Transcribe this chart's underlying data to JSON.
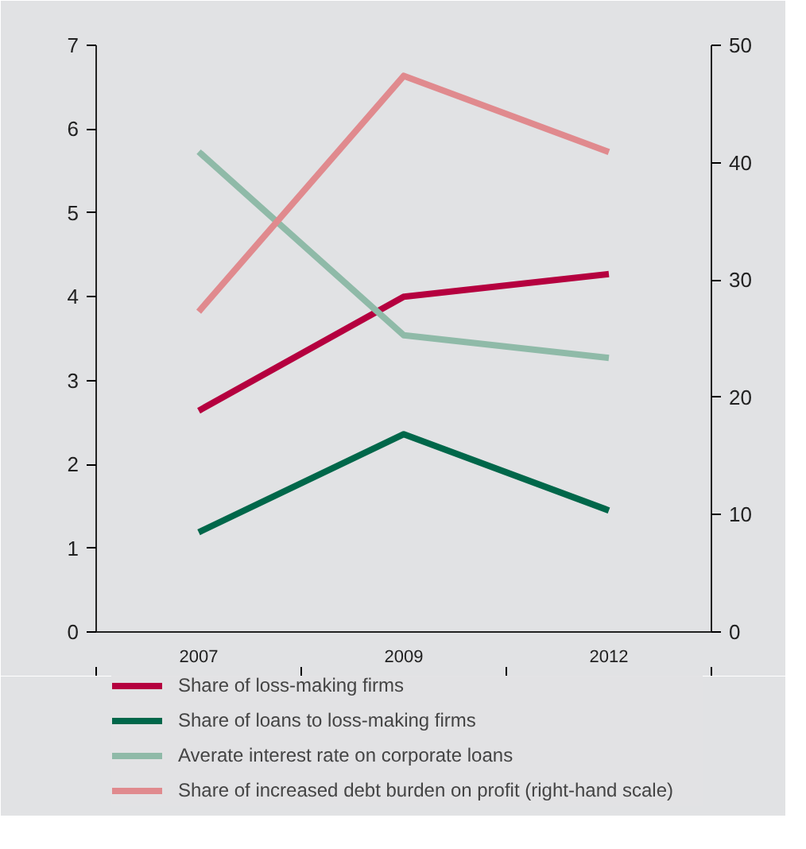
{
  "chart_data": {
    "type": "line",
    "categories": [
      "2007",
      "2009",
      "2012"
    ],
    "series": [
      {
        "name": "Share of loss-making firms",
        "color": "#b5003f",
        "values": [
          2.64,
          4.0,
          4.27
        ]
      },
      {
        "name": "Share of loans to loss-making firms",
        "color": "#00674a",
        "values": [
          1.19,
          2.36,
          1.45
        ]
      },
      {
        "name": "Averate interest rate on corporate loans",
        "color": "#8fbaa8",
        "values": [
          5.73,
          3.54,
          3.27
        ]
      },
      {
        "name": "Share of increased debt burden on profit (right-hand scale)",
        "color": "#e08a8e",
        "values": [
          27.3,
          47.4,
          40.9
        ],
        "axis": "y2"
      }
    ],
    "ylim": [
      0,
      7
    ],
    "yticks": [
      0,
      1,
      2,
      3,
      4,
      5,
      6,
      7
    ],
    "y2lim": [
      0,
      50
    ],
    "y2ticks": [
      0,
      10,
      20,
      30,
      40,
      50
    ],
    "grid": false,
    "legend": "bottom",
    "marker": "none",
    "line_style": "solid"
  }
}
